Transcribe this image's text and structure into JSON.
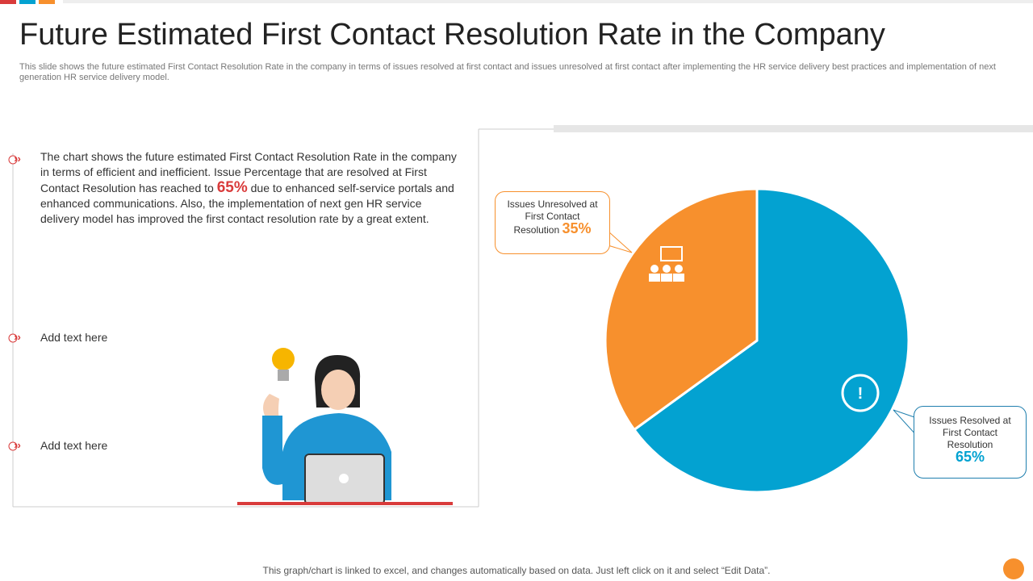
{
  "title": "Future Estimated First Contact Resolution Rate in the Company",
  "subtitle": "This slide shows the future estimated First Contact Resolution Rate in the company in terms of issues resolved at first contact and issues unresolved at first contact after implementing the HR service delivery best practices and implementation of next generation HR service delivery model.",
  "bullets": [
    {
      "parts": [
        "The chart shows the future estimated First Contact Resolution Rate in the company in terms of efficient and inefficient. Issue Percentage that are resolved at First Contact Resolution has reached to ",
        "65%",
        " due to enhanced self-service portals and enhanced communications. Also, the implementation of next gen HR service delivery model has improved the first contact resolution rate by a great extent."
      ]
    },
    {
      "parts": [
        "Add text here"
      ]
    },
    {
      "parts": [
        "Add text here"
      ]
    }
  ],
  "footer": "This graph/chart is linked to excel,  and changes automatically based on data. Just left click on it and select “Edit Data”.",
  "chart_data": {
    "type": "pie",
    "categories": [
      "Issues Resolved  at First Contact Resolution",
      "Issues Unresolved  at First Contact Resolution"
    ],
    "values": [
      65,
      35
    ],
    "value_labels": [
      "65%",
      "35%"
    ],
    "colors": [
      "#03a2d1",
      "#f7902d"
    ]
  }
}
